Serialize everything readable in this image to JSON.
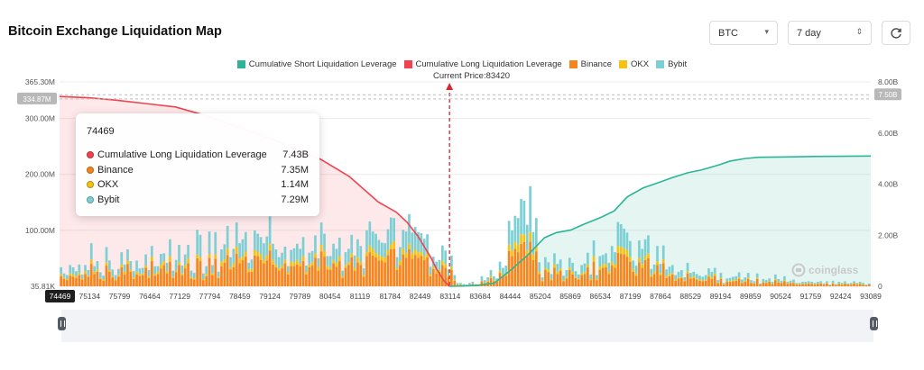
{
  "header": {
    "title": "Bitcoin Exchange Liquidation Map",
    "symbol_select": "BTC",
    "period_select": "7 day",
    "refresh_icon": "refresh-icon"
  },
  "legend": [
    {
      "label": "Cumulative Short Liquidation Leverage",
      "color": "#2bb596"
    },
    {
      "label": "Cumulative Long Liquidation Leverage",
      "color": "#f0434f"
    },
    {
      "label": "Binance",
      "color": "#f7851b"
    },
    {
      "label": "OKX",
      "color": "#f5c211"
    },
    {
      "label": "Bybit",
      "color": "#7ccfd4"
    }
  ],
  "current_price_label": "Current Price:83420",
  "tooltip": {
    "title": "74469",
    "rows": [
      {
        "label": "Cumulative Long Liquidation Leverage",
        "value": "7.43B",
        "color": "#f0434f"
      },
      {
        "label": "Binance",
        "value": "7.35M",
        "color": "#f7851b"
      },
      {
        "label": "OKX",
        "value": "1.14M",
        "color": "#f5c211"
      },
      {
        "label": "Bybit",
        "value": "7.29M",
        "color": "#7ccfd4"
      }
    ]
  },
  "watermark": "coinglass",
  "chart_data": {
    "type": "bar",
    "title": "Bitcoin Exchange Liquidation Map",
    "x_ticks": [
      "74469",
      "75134",
      "75799",
      "76464",
      "77129",
      "77794",
      "78459",
      "79124",
      "79789",
      "80454",
      "81119",
      "81784",
      "82449",
      "83114",
      "83684",
      "84444",
      "85204",
      "85869",
      "86534",
      "87199",
      "87864",
      "88529",
      "89194",
      "89859",
      "90524",
      "91759",
      "92424",
      "93089"
    ],
    "x_range": [
      74469,
      93089
    ],
    "current_price": 83420,
    "left_axis": {
      "ticks": [
        "35.81K",
        "100.00M",
        "200.00M",
        "300.00M",
        "365.30M"
      ],
      "tick_values": [
        0.03581,
        100,
        200,
        300,
        365.3
      ],
      "range": [
        0.03581,
        365.3
      ],
      "highlight": "334.87M",
      "unit": "M"
    },
    "right_axis": {
      "ticks": [
        "0",
        "2.00B",
        "4.00B",
        "6.00B",
        "8.00B"
      ],
      "tick_values": [
        0,
        2,
        4,
        6,
        8
      ],
      "range": [
        0,
        8
      ],
      "highlight": "7.50B",
      "unit": "B"
    },
    "series": [
      {
        "name": "Binance",
        "color": "#f7851b",
        "values": [
          18,
          13,
          11,
          19,
          17,
          15,
          20,
          12,
          22,
          17,
          40,
          22,
          26,
          13,
          10,
          37,
          26,
          16,
          11,
          17,
          34,
          21,
          40,
          26,
          13,
          21,
          19,
          20,
          33,
          15,
          45,
          19,
          22,
          32,
          38,
          23,
          44,
          15,
          25,
          38,
          20,
          32,
          41,
          14,
          12,
          50,
          45,
          11,
          18,
          51,
          20,
          49,
          15,
          36,
          42,
          56,
          30,
          34,
          58,
          41,
          47,
          53,
          25,
          26,
          55,
          54,
          47,
          41,
          46,
          64,
          39,
          34,
          28,
          32,
          41,
          21,
          36,
          36,
          39,
          36,
          45,
          21,
          34,
          37,
          51,
          28,
          62,
          53,
          30,
          30,
          41,
          35,
          45,
          15,
          33,
          38,
          52,
          28,
          43,
          38,
          17,
          54,
          61,
          55,
          52,
          46,
          46,
          43,
          56,
          66,
          67,
          29,
          38,
          57,
          51,
          66,
          49,
          56,
          51,
          54,
          47,
          52,
          18,
          31,
          23,
          26,
          38,
          33,
          17,
          29,
          10,
          3,
          3,
          2,
          2,
          3,
          4,
          2,
          2,
          9,
          6,
          8,
          15,
          9,
          8,
          24,
          18,
          19,
          63,
          54,
          67,
          61,
          76,
          79,
          54,
          80,
          47,
          62,
          22,
          9,
          29,
          25,
          11,
          33,
          22,
          28,
          9,
          14,
          29,
          21,
          15,
          12,
          20,
          22,
          34,
          11,
          44,
          11,
          29,
          33,
          34,
          22,
          37,
          33,
          60,
          58,
          57,
          53,
          44,
          26,
          19,
          43,
          33,
          47,
          50,
          17,
          22,
          38,
          20,
          41,
          15,
          18,
          21,
          10,
          14,
          15,
          9,
          23,
          14,
          15,
          12,
          10,
          9,
          10,
          17,
          13,
          19,
          6,
          13,
          3,
          8,
          8,
          9,
          10,
          13,
          6,
          8,
          13,
          6,
          5,
          13,
          3,
          7,
          6,
          8,
          4,
          11,
          7,
          6,
          9,
          4,
          6,
          6,
          3,
          3,
          4,
          4,
          5,
          4,
          3,
          4,
          5,
          3,
          5,
          2,
          5,
          2,
          4,
          3,
          5,
          3,
          3,
          5,
          3,
          4,
          3,
          2,
          3
        ]
      },
      {
        "name": "OKX",
        "color": "#f5c211",
        "values": [
          4,
          2,
          2,
          4,
          4,
          3,
          4,
          2,
          5,
          2,
          8,
          4,
          4,
          2,
          2,
          6,
          3,
          2,
          2,
          3,
          5,
          5,
          6,
          4,
          3,
          5,
          3,
          3,
          4,
          3,
          8,
          3,
          4,
          7,
          7,
          4,
          10,
          2,
          3,
          5,
          3,
          6,
          9,
          3,
          2,
          7,
          7,
          2,
          4,
          7,
          3,
          8,
          2,
          8,
          6,
          12,
          4,
          7,
          13,
          9,
          6,
          9,
          5,
          5,
          10,
          8,
          10,
          6,
          9,
          12,
          8,
          5,
          4,
          5,
          6,
          4,
          8,
          7,
          8,
          5,
          9,
          4,
          5,
          6,
          8,
          6,
          12,
          10,
          6,
          4,
          6,
          7,
          9,
          3,
          5,
          5,
          7,
          5,
          9,
          6,
          3,
          8,
          12,
          12,
          8,
          10,
          7,
          9,
          9,
          9,
          14,
          4,
          8,
          11,
          9,
          10,
          10,
          10,
          10,
          8,
          7,
          7,
          3,
          4,
          5,
          4,
          8,
          7,
          2,
          5,
          2,
          0,
          1,
          0,
          0,
          0,
          1,
          0,
          0,
          1,
          1,
          2,
          3,
          2,
          1,
          4,
          3,
          3,
          12,
          11,
          12,
          14,
          17,
          14,
          10,
          17,
          10,
          10,
          4,
          2,
          4,
          5,
          2,
          7,
          4,
          4,
          2,
          3,
          5,
          5,
          2,
          2,
          3,
          4,
          5,
          2,
          10,
          2,
          6,
          7,
          6,
          4,
          7,
          6,
          12,
          13,
          11,
          12,
          9,
          5,
          4,
          8,
          7,
          7,
          9,
          3,
          4,
          7,
          4,
          7,
          3,
          4,
          3,
          2,
          2,
          2,
          2,
          4,
          2,
          3,
          2,
          2,
          2,
          2,
          3,
          3,
          4,
          1,
          2,
          1,
          1,
          2,
          2,
          2,
          3,
          1,
          2,
          3,
          1,
          1,
          2,
          0,
          1,
          1,
          1,
          1,
          2,
          1,
          1,
          2,
          1,
          1,
          1,
          1,
          1,
          1,
          1,
          1,
          1,
          1,
          1,
          1,
          0,
          1,
          0,
          1,
          0,
          1,
          1,
          1,
          0,
          1,
          1,
          1,
          1,
          1,
          0,
          0
        ]
      },
      {
        "name": "Bybit",
        "color": "#7ccfd4",
        "values": [
          12,
          8,
          7,
          15,
          13,
          9,
          15,
          7,
          11,
          10,
          29,
          10,
          15,
          10,
          7,
          27,
          17,
          12,
          7,
          11,
          22,
          13,
          20,
          15,
          11,
          20,
          10,
          10,
          20,
          11,
          19,
          14,
          10,
          19,
          14,
          15,
          30,
          11,
          19,
          31,
          14,
          19,
          24,
          11,
          10,
          44,
          40,
          10,
          14,
          40,
          15,
          40,
          9,
          22,
          27,
          40,
          18,
          26,
          43,
          27,
          31,
          35,
          12,
          17,
          35,
          32,
          31,
          30,
          34,
          49,
          29,
          27,
          20,
          23,
          24,
          11,
          21,
          25,
          29,
          26,
          34,
          12,
          21,
          20,
          32,
          16,
          40,
          31,
          18,
          20,
          29,
          25,
          33,
          10,
          23,
          24,
          33,
          22,
          32,
          28,
          12,
          38,
          43,
          31,
          34,
          27,
          25,
          25,
          37,
          48,
          41,
          19,
          24,
          33,
          38,
          53,
          37,
          40,
          36,
          33,
          31,
          34,
          14,
          18,
          16,
          17,
          27,
          24,
          11,
          21,
          8,
          3,
          2,
          2,
          1,
          3,
          3,
          2,
          1,
          8,
          4,
          6,
          11,
          7,
          5,
          16,
          12,
          15,
          42,
          35,
          47,
          47,
          63,
          60,
          46,
          82,
          40,
          50,
          17,
          5,
          19,
          13,
          9,
          19,
          14,
          16,
          8,
          12,
          17,
          16,
          10,
          7,
          15,
          15,
          21,
          8,
          28,
          7,
          19,
          16,
          19,
          16,
          28,
          22,
          43,
          40,
          35,
          31,
          28,
          15,
          14,
          31,
          27,
          30,
          32,
          11,
          13,
          27,
          16,
          25,
          12,
          13,
          14,
          8,
          10,
          12,
          5,
          15,
          8,
          8,
          8,
          7,
          6,
          8,
          12,
          10,
          10,
          4,
          9,
          2,
          5,
          5,
          6,
          6,
          9,
          5,
          6,
          8,
          4,
          3,
          8,
          2,
          5,
          4,
          5,
          3,
          8,
          5,
          3,
          7,
          3,
          3,
          5,
          2,
          2,
          3,
          3,
          3,
          3,
          2,
          3,
          3,
          2,
          3,
          1,
          4,
          2,
          3,
          2,
          3,
          2,
          2,
          3,
          2,
          3,
          2,
          1,
          2
        ]
      },
      {
        "name": "Cumulative Long Liquidation Leverage",
        "color": "#f0434f",
        "axis": "right",
        "x": [
          74469,
          75134,
          75799,
          76464,
          77129,
          77794,
          78459,
          79124,
          79789,
          80454,
          81119,
          81784,
          82200,
          82449,
          82700,
          83000,
          83114,
          83300,
          83420
        ],
        "values": [
          7.43,
          7.38,
          7.28,
          7.15,
          7.02,
          6.7,
          6.3,
          5.9,
          5.45,
          4.98,
          4.3,
          3.3,
          2.9,
          2.5,
          1.95,
          1.1,
          0.7,
          0.2,
          0.0
        ]
      },
      {
        "name": "Cumulative Short Liquidation Leverage",
        "color": "#2bb596",
        "axis": "right",
        "x": [
          83420,
          83684,
          84000,
          84444,
          84800,
          85204,
          85600,
          85869,
          86200,
          86534,
          86900,
          87199,
          87500,
          87864,
          88200,
          88529,
          88900,
          89194,
          89600,
          89859,
          90200,
          90524,
          91000,
          91759,
          92424,
          93089
        ],
        "values": [
          0.0,
          0.01,
          0.03,
          0.12,
          0.6,
          1.2,
          1.9,
          2.1,
          2.2,
          2.45,
          2.7,
          2.95,
          3.5,
          3.85,
          4.05,
          4.25,
          4.45,
          4.55,
          4.75,
          4.9,
          5.0,
          5.05,
          5.06,
          5.08,
          5.09,
          5.1
        ]
      }
    ]
  }
}
